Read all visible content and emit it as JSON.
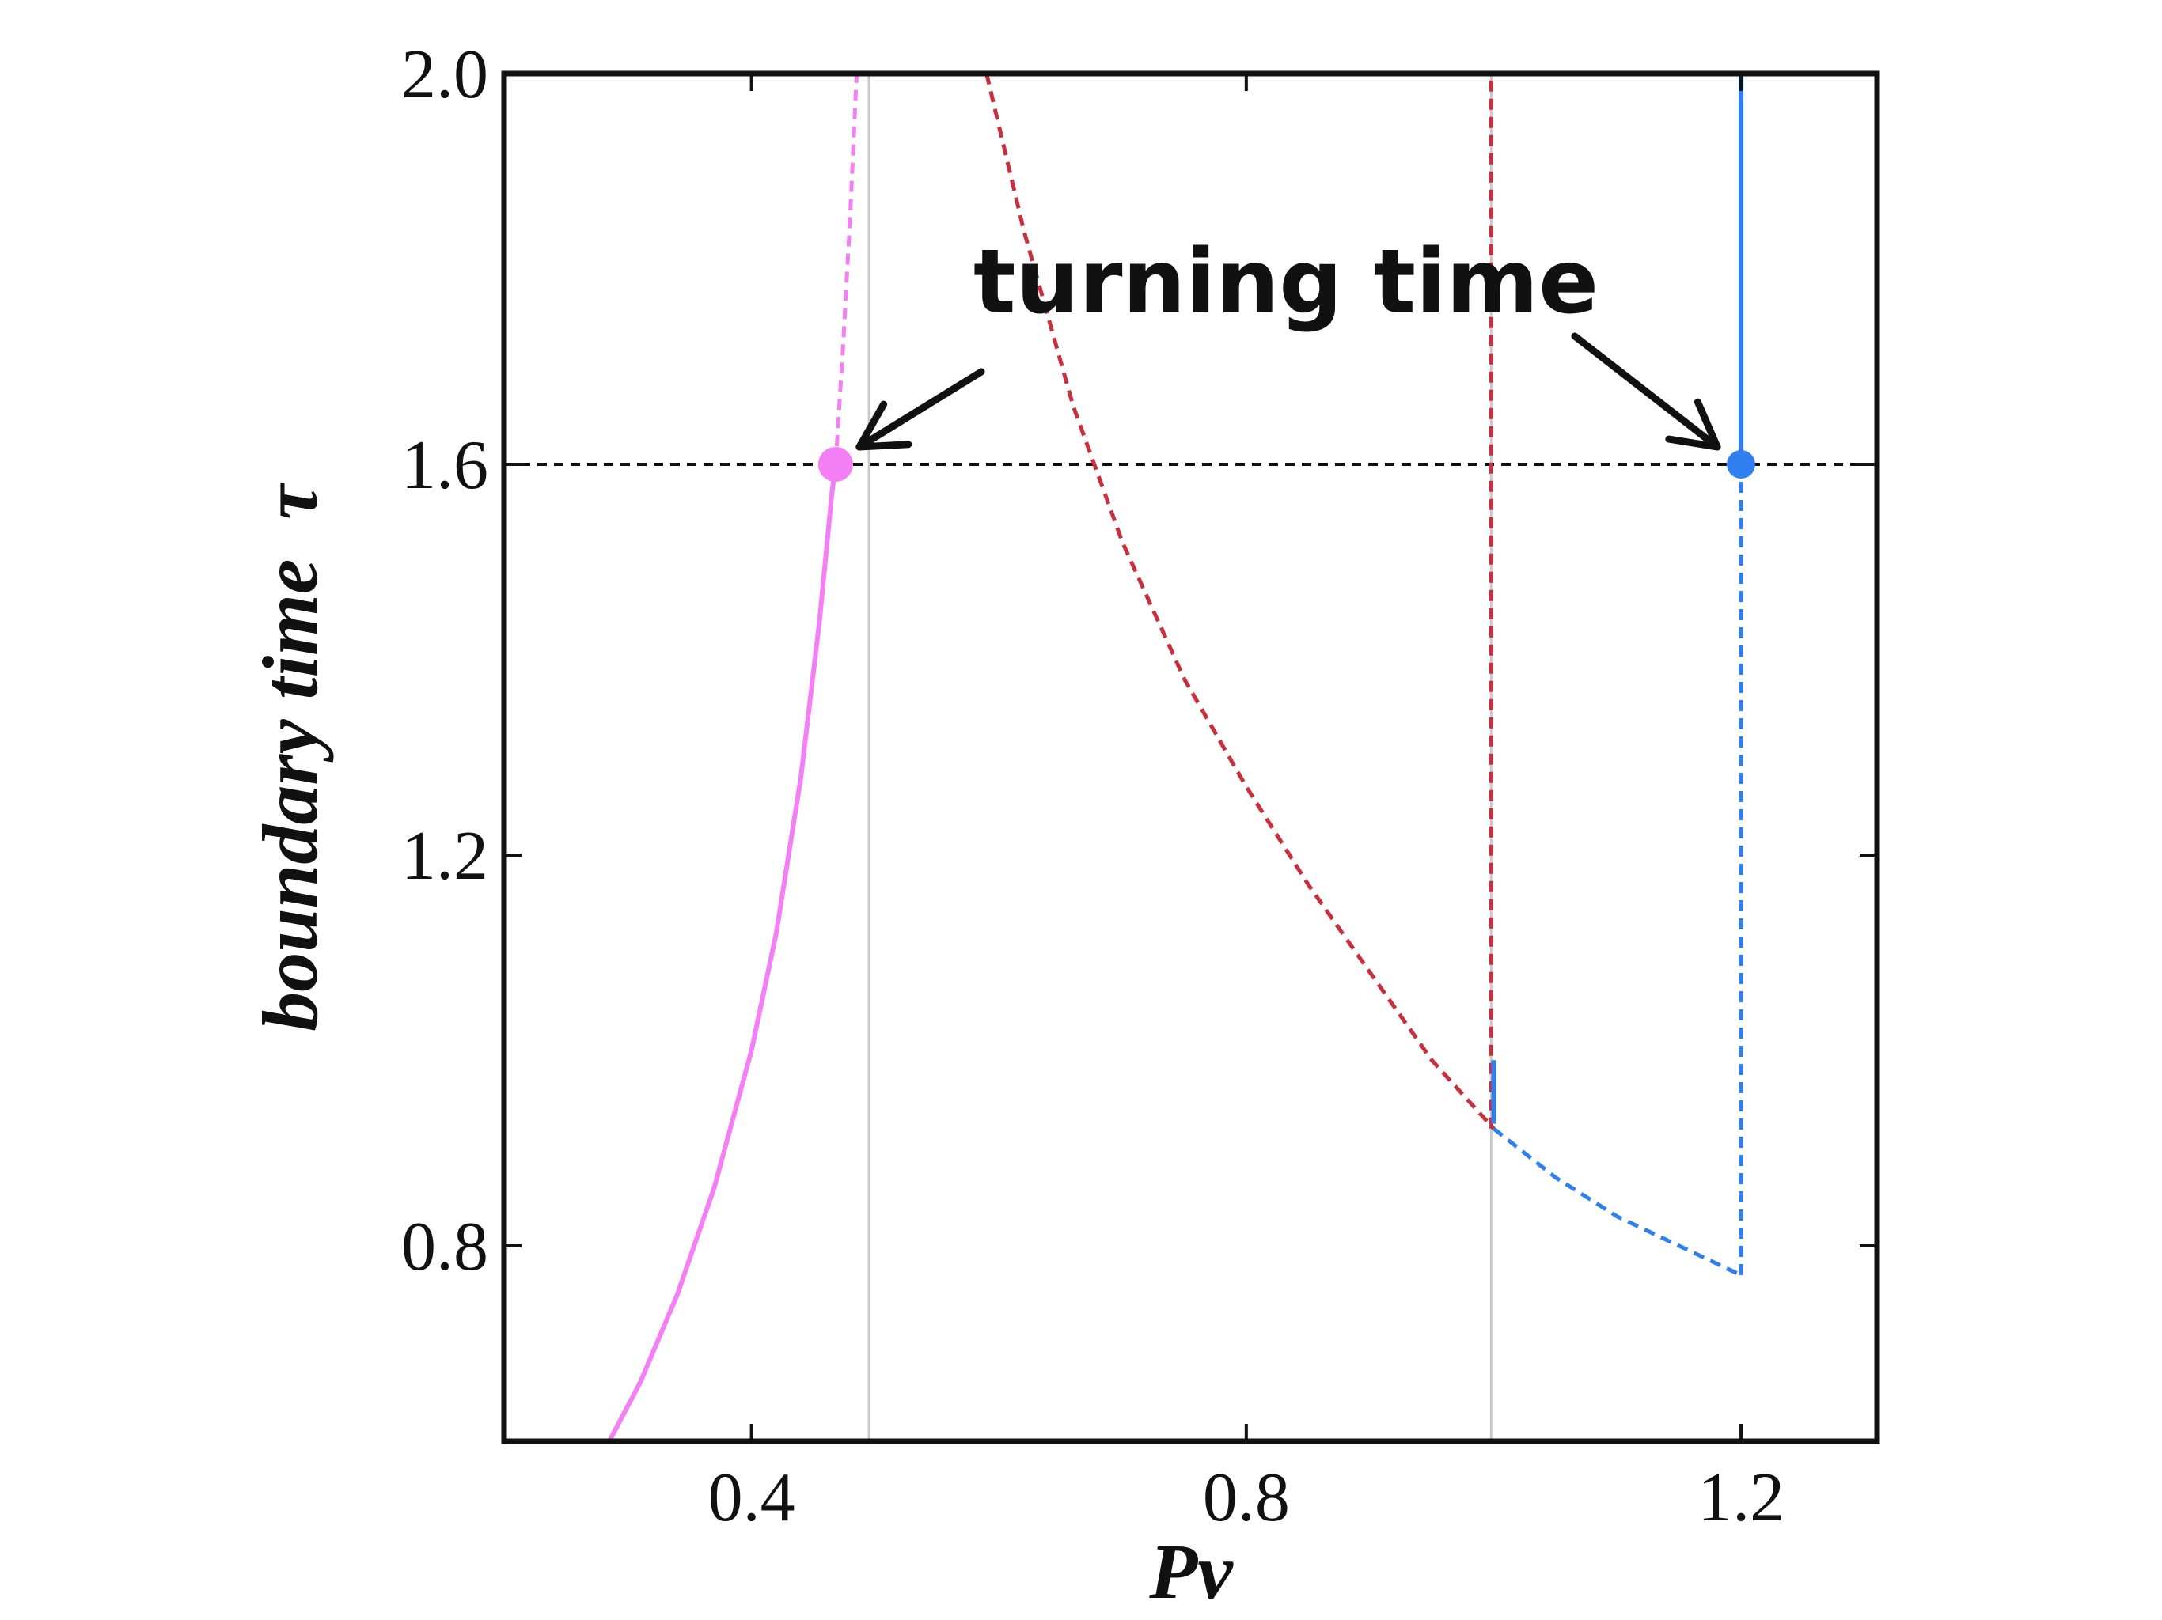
{
  "chart_data": {
    "type": "line",
    "title": "",
    "xlabel": "Pv",
    "ylabel": "boundary time  τ",
    "xlim": [
      0.2,
      1.31
    ],
    "ylim": [
      0.6,
      2.0
    ],
    "x_ticks": [
      0.4,
      0.8,
      1.2
    ],
    "x_tick_labels": [
      "0.4",
      "0.8",
      "1.2"
    ],
    "y_ticks": [
      0.8,
      1.2,
      1.6,
      2.0
    ],
    "y_tick_labels": [
      "0.8",
      "1.2",
      "1.6",
      "2.0"
    ],
    "grid": false,
    "series": [
      {
        "color": "#f47ef4",
        "style": "solid",
        "points": [
          [
            0.285,
            0.6
          ],
          [
            0.31,
            0.66
          ],
          [
            0.34,
            0.75
          ],
          [
            0.37,
            0.86
          ],
          [
            0.4,
            1.0
          ],
          [
            0.42,
            1.12
          ],
          [
            0.44,
            1.28
          ],
          [
            0.455,
            1.44
          ],
          [
            0.465,
            1.57
          ],
          [
            0.468,
            1.6
          ]
        ]
      },
      {
        "color": "#f47ef4",
        "style": "dashed",
        "points": [
          [
            0.468,
            1.6
          ],
          [
            0.474,
            1.72
          ],
          [
            0.48,
            1.86
          ],
          [
            0.485,
            2.0
          ]
        ]
      },
      {
        "color": "#c9303e",
        "style": "dashed",
        "points": [
          [
            0.59,
            2.0
          ],
          [
            0.62,
            1.84
          ],
          [
            0.66,
            1.66
          ],
          [
            0.7,
            1.52
          ],
          [
            0.75,
            1.38
          ],
          [
            0.8,
            1.27
          ],
          [
            0.85,
            1.17
          ],
          [
            0.9,
            1.08
          ],
          [
            0.95,
            0.99
          ],
          [
            1.0,
            0.92
          ]
        ]
      },
      {
        "color": "#c9303e",
        "style": "dashed",
        "points": [
          [
            0.998,
            0.92
          ],
          [
            0.998,
            2.0
          ]
        ]
      },
      {
        "color": "#2f7ff0",
        "style": "solid",
        "points": [
          [
            1.0,
            0.925
          ],
          [
            1.0,
            0.99
          ]
        ]
      },
      {
        "color": "#2f7ff0",
        "style": "dashed",
        "points": [
          [
            1.0,
            0.92
          ],
          [
            1.05,
            0.87
          ],
          [
            1.1,
            0.83
          ],
          [
            1.15,
            0.8
          ],
          [
            1.2,
            0.77
          ]
        ]
      },
      {
        "color": "#2f7ff0",
        "style": "dashed",
        "points": [
          [
            1.2,
            0.77
          ],
          [
            1.2,
            1.6
          ]
        ]
      },
      {
        "color": "#2f7ff0",
        "style": "solid",
        "points": [
          [
            1.2,
            1.6
          ],
          [
            1.2,
            2.0
          ]
        ]
      }
    ],
    "reference_lines": [
      {
        "orientation": "horizontal",
        "value": 1.6,
        "color": "#111111",
        "style": "dashed"
      },
      {
        "orientation": "vertical",
        "value": 0.495,
        "color": "#c8c8c8",
        "style": "solid"
      },
      {
        "orientation": "vertical",
        "value": 0.998,
        "color": "#c8c8c8",
        "style": "solid"
      }
    ],
    "markers": [
      {
        "x": 0.468,
        "y": 1.6,
        "color": "#f47ef4"
      },
      {
        "x": 1.2,
        "y": 1.6,
        "color": "#2f7ff0"
      }
    ],
    "annotations": [
      {
        "text": "turning time",
        "targets": [
          [
            0.468,
            1.6
          ],
          [
            1.2,
            1.6
          ]
        ]
      }
    ]
  }
}
